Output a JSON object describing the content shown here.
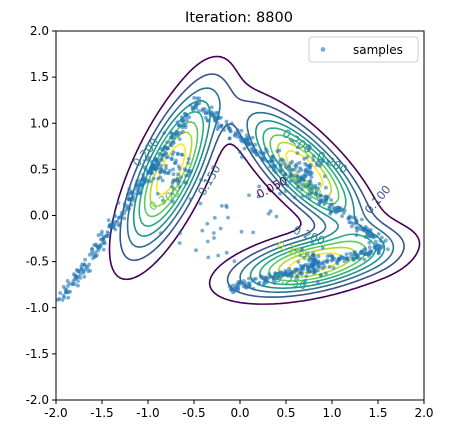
{
  "chart_data": {
    "type": "scatter",
    "title": "Iteration: 8800",
    "xlim": [
      -2.0,
      2.0
    ],
    "ylim": [
      -2.0,
      2.0
    ],
    "xticks": [
      "-2.0",
      "-1.5",
      "-1.0",
      "-0.5",
      "0.0",
      "0.5",
      "1.0",
      "1.5",
      "2.0"
    ],
    "yticks": [
      "2.0",
      "1.5",
      "1.0",
      "0.5",
      "0.0",
      "-0.5",
      "-1.0",
      "-1.5",
      "-2.0"
    ],
    "legend": {
      "label": "samples",
      "placement": "top-right"
    },
    "scatter_color": "#1f77b4",
    "contour_levels": [
      {
        "level": 0.05,
        "color": "#440154"
      },
      {
        "level": 0.1,
        "color": "#3b528b"
      },
      {
        "level": 0.15,
        "color": "#2c728e"
      },
      {
        "level": 0.2,
        "color": "#21918c"
      },
      {
        "level": 0.25,
        "color": "#28ae80"
      },
      {
        "level": 0.3,
        "color": "#5ec962"
      },
      {
        "level": 0.35,
        "color": "#addc30"
      },
      {
        "level": 0.4,
        "color": "#fde725"
      }
    ],
    "contour_labels": [
      {
        "text": "0.200",
        "x": -1.02,
        "y": 0.68,
        "rot": -50,
        "color": "#21918c"
      },
      {
        "text": "0.300",
        "x": -0.82,
        "y": 0.17,
        "rot": -30,
        "color": "#5ec962"
      },
      {
        "text": "0.150",
        "x": -0.33,
        "y": 0.38,
        "rot": -60,
        "color": "#2c728e"
      },
      {
        "text": "0.050",
        "x": 0.35,
        "y": 0.3,
        "rot": -28,
        "color": "#440154"
      },
      {
        "text": "0.100",
        "x": 1.5,
        "y": 0.17,
        "rot": -50,
        "color": "#3b528b"
      },
      {
        "text": "0.200",
        "x": 0.62,
        "y": 0.8,
        "rot": 35,
        "color": "#21918c"
      },
      {
        "text": "0.200",
        "x": 1.0,
        "y": 0.57,
        "rot": 30,
        "color": "#21918c"
      },
      {
        "text": "0.300",
        "x": 0.72,
        "y": 0.32,
        "rot": 35,
        "color": "#5ec962"
      },
      {
        "text": "0.200",
        "x": 0.75,
        "y": -0.22,
        "rot": 22,
        "color": "#21918c"
      },
      {
        "text": "0.350",
        "x": 0.57,
        "y": -0.38,
        "rot": 22,
        "color": "#addc30"
      },
      {
        "text": "0.250",
        "x": 0.55,
        "y": -0.72,
        "rot": 15,
        "color": "#28ae80"
      }
    ],
    "modes": [
      {
        "x": -0.75,
        "y": 0.5,
        "ang": 65,
        "a": 0.62,
        "b": 0.2,
        "w": 1.0
      },
      {
        "x": 0.7,
        "y": 0.5,
        "ang": -45,
        "a": 0.55,
        "b": 0.2,
        "w": 1.0
      },
      {
        "x": 0.8,
        "y": -0.52,
        "ang": 12,
        "a": 0.55,
        "b": 0.18,
        "w": 1.0
      }
    ]
  }
}
